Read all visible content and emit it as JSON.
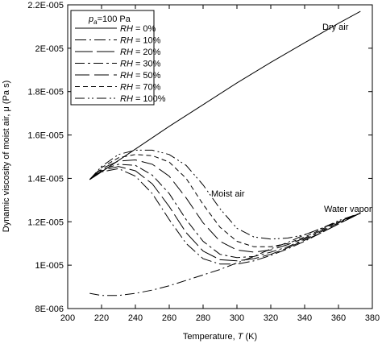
{
  "chart_data": {
    "type": "line",
    "title": "",
    "xlabel_prefix": "Temperature, ",
    "xlabel_var": "T",
    "xlabel_unit": " (K)",
    "ylabel": "Dynamic viscosity of moist air, μ (Pa s)",
    "xlim": [
      200,
      380
    ],
    "ylim": [
      8e-06,
      2.2e-05
    ],
    "x_ticks": [
      200,
      220,
      240,
      260,
      280,
      300,
      320,
      340,
      360,
      380
    ],
    "x_tick_labels": [
      "200",
      "220",
      "240",
      "260",
      "280",
      "300",
      "320",
      "340",
      "360",
      "380"
    ],
    "y_ticks": [
      8e-06,
      1e-05,
      1.2e-05,
      1.4e-05,
      1.6e-05,
      1.8e-05,
      2e-05,
      2.2e-05
    ],
    "y_tick_labels": [
      "8E-006",
      "1E-005",
      "1.2E-005",
      "1.4E-005",
      "1.6E-005",
      "1.8E-005",
      "2E-005",
      "2.2E-005"
    ],
    "grid": false,
    "legend_placement": "top-left",
    "legend_title_prefix": "p",
    "legend_title_sub": "a",
    "legend_title_suffix": "=100 Pa",
    "annotations": [
      "Dry air",
      "Moist air",
      "Water vapor"
    ],
    "series": [
      {
        "name": "RH = 0%",
        "label_var": "RH",
        "label_val": " = 0%",
        "dash": "none",
        "x": [
          213,
          220,
          240,
          260,
          280,
          300,
          320,
          340,
          360,
          373
        ],
        "y": [
          1.395e-05,
          1.43e-05,
          1.535e-05,
          1.64e-05,
          1.74e-05,
          1.84e-05,
          1.935e-05,
          2.025e-05,
          2.115e-05,
          2.17e-05
        ]
      },
      {
        "name": "RH = 10%",
        "label_var": "RH",
        "label_val": " = 10%",
        "dash": "14,4,2,4",
        "x": [
          213,
          220,
          230,
          240,
          250,
          260,
          270,
          280,
          290,
          300,
          310,
          320,
          330,
          340,
          350,
          360,
          373
        ],
        "y": [
          1.395e-05,
          1.43e-05,
          1.445e-05,
          1.41e-05,
          1.33e-05,
          1.21e-05,
          1.1e-05,
          1.03e-05,
          1.005e-05,
          1.005e-05,
          1.02e-05,
          1.045e-05,
          1.075e-05,
          1.11e-05,
          1.15e-05,
          1.19e-05,
          1.24e-05
        ]
      },
      {
        "name": "RH = 20%",
        "label_var": "RH",
        "label_val": " = 20%",
        "dash": "22,5",
        "x": [
          213,
          220,
          230,
          240,
          250,
          260,
          270,
          280,
          290,
          300,
          310,
          320,
          330,
          340,
          350,
          360,
          373
        ],
        "y": [
          1.395e-05,
          1.435e-05,
          1.455e-05,
          1.435e-05,
          1.375e-05,
          1.27e-05,
          1.15e-05,
          1.065e-05,
          1.025e-05,
          1.02e-05,
          1.03e-05,
          1.05e-05,
          1.08e-05,
          1.115e-05,
          1.15e-05,
          1.19e-05,
          1.24e-05
        ]
      },
      {
        "name": "RH = 30%",
        "label_var": "RH",
        "label_val": " = 30%",
        "dash": "12,4,3,4",
        "x": [
          213,
          220,
          230,
          240,
          250,
          260,
          270,
          280,
          290,
          300,
          310,
          320,
          330,
          340,
          350,
          360,
          373
        ],
        "y": [
          1.395e-05,
          1.44e-05,
          1.465e-05,
          1.46e-05,
          1.415e-05,
          1.33e-05,
          1.21e-05,
          1.11e-05,
          1.05e-05,
          1.035e-05,
          1.04e-05,
          1.06e-05,
          1.085e-05,
          1.12e-05,
          1.155e-05,
          1.195e-05,
          1.24e-05
        ]
      },
      {
        "name": "RH = 50%",
        "label_var": "RH",
        "label_val": " = 50%",
        "dash": "18,6",
        "x": [
          213,
          220,
          230,
          240,
          250,
          260,
          270,
          280,
          290,
          300,
          310,
          320,
          330,
          340,
          350,
          360,
          373
        ],
        "y": [
          1.395e-05,
          1.445e-05,
          1.48e-05,
          1.485e-05,
          1.465e-05,
          1.41e-05,
          1.31e-05,
          1.195e-05,
          1.11e-05,
          1.07e-05,
          1.06e-05,
          1.07e-05,
          1.095e-05,
          1.125e-05,
          1.16e-05,
          1.195e-05,
          1.24e-05
        ]
      },
      {
        "name": "RH = 70%",
        "label_var": "RH",
        "label_val": " = 70%",
        "dash": "6,4",
        "x": [
          213,
          220,
          230,
          240,
          250,
          260,
          270,
          280,
          290,
          300,
          310,
          320,
          330,
          340,
          350,
          360,
          373
        ],
        "y": [
          1.395e-05,
          1.45e-05,
          1.495e-05,
          1.51e-05,
          1.505e-05,
          1.475e-05,
          1.4e-05,
          1.28e-05,
          1.175e-05,
          1.11e-05,
          1.085e-05,
          1.085e-05,
          1.1e-05,
          1.13e-05,
          1.165e-05,
          1.2e-05,
          1.24e-05
        ]
      },
      {
        "name": "RH = 100%",
        "label_var": "RH",
        "label_val": " = 100%",
        "dash": "12,4,2,3,2,4",
        "x": [
          213,
          220,
          230,
          240,
          250,
          260,
          270,
          280,
          290,
          300,
          310,
          320,
          330,
          340,
          350,
          360,
          373
        ],
        "y": [
          1.395e-05,
          1.455e-05,
          1.51e-05,
          1.53e-05,
          1.53e-05,
          1.51e-05,
          1.46e-05,
          1.37e-05,
          1.26e-05,
          1.17e-05,
          1.13e-05,
          1.12e-05,
          1.125e-05,
          1.14e-05,
          1.17e-05,
          1.205e-05,
          1.24e-05
        ]
      },
      {
        "name": "Water vapor",
        "dash": "12,4,2,4",
        "x": [
          213,
          220,
          230,
          240,
          250,
          260,
          270,
          280,
          290,
          300,
          310,
          320,
          330,
          340,
          350,
          360,
          373
        ],
        "y": [
          8.7e-06,
          8.6e-06,
          8.6e-06,
          8.7e-06,
          8.85e-06,
          9.05e-06,
          9.3e-06,
          9.55e-06,
          9.8e-06,
          1.01e-05,
          1.04e-05,
          1.075e-05,
          1.105e-05,
          1.14e-05,
          1.17e-05,
          1.2e-05,
          1.24e-05
        ]
      }
    ]
  }
}
